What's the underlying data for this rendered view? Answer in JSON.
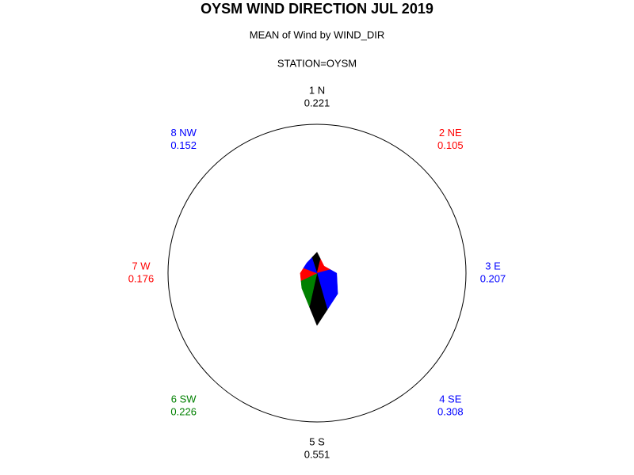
{
  "chart_data": {
    "type": "star",
    "title": "OYSM WIND DIRECTION JUL 2019",
    "subtitle": "MEAN of Wind by WIND_DIR",
    "by_line": "STATION=OYSM",
    "categories": [
      "1 N",
      "2 NE",
      "3 E",
      "4 SE",
      "5 S",
      "6 SW",
      "7 W",
      "8 NW"
    ],
    "values": [
      0.221,
      0.105,
      0.207,
      0.308,
      0.551,
      0.226,
      0.176,
      0.152
    ],
    "colors": [
      "#000000",
      "#ff0000",
      "#0000ff",
      "#0000ff",
      "#000000",
      "#008000",
      "#ff0000",
      "#0000ff"
    ]
  }
}
